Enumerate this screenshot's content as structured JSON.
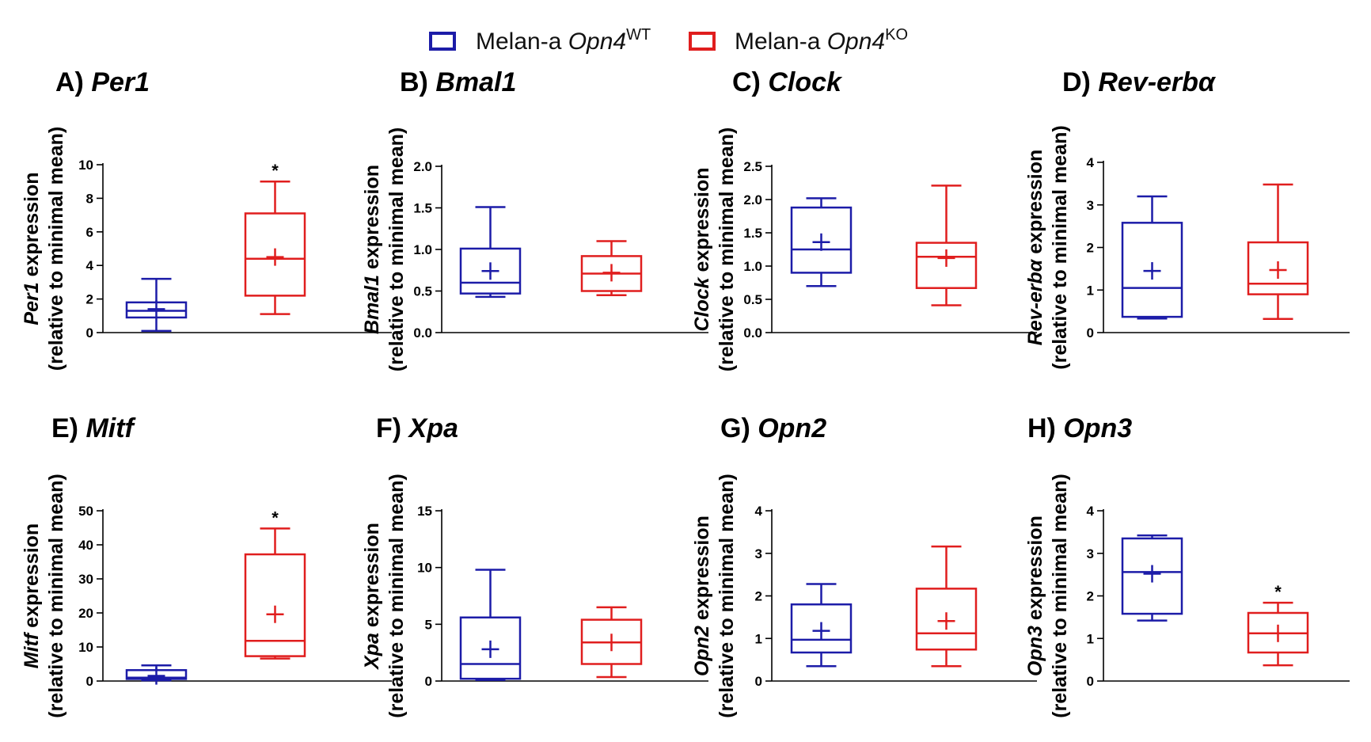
{
  "legend": {
    "items": [
      {
        "prefix": "Melan-a ",
        "gene": "Opn4",
        "sup": "WT",
        "color": "#1c1ca8"
      },
      {
        "prefix": "Melan-a ",
        "gene": "Opn4",
        "sup": "KO",
        "color": "#e01e1e"
      }
    ]
  },
  "chart_data": [
    {
      "type": "box",
      "panel": "A)",
      "gene": "Per1",
      "title": "A) Per1",
      "ylabel_gene": "Per1",
      "ylabel_suffix": " expression",
      "ylabel_line2": "(relative to minimal mean)",
      "ylim": [
        0,
        10
      ],
      "ticks": [
        0,
        2,
        4,
        6,
        8,
        10
      ],
      "tick_labels": [
        "0",
        "2",
        "4",
        "6",
        "8",
        "10"
      ],
      "groups": [
        {
          "name": "Melan-a Opn4 WT",
          "min": 0.1,
          "q1": 0.9,
          "median": 1.3,
          "q3": 1.8,
          "max": 3.2,
          "mean": 1.4,
          "sig": ""
        },
        {
          "name": "Melan-a Opn4 KO",
          "min": 1.1,
          "q1": 2.2,
          "median": 4.4,
          "q3": 7.1,
          "max": 9.0,
          "mean": 4.5,
          "sig": "*"
        }
      ]
    },
    {
      "type": "box",
      "panel": "B)",
      "gene": "Bmal1",
      "title": "B) Bmal1",
      "ylabel_gene": "Bmal1",
      "ylabel_suffix": " expression",
      "ylabel_line2": "(relative to minimal mean)",
      "ylim": [
        0,
        2
      ],
      "ticks": [
        0,
        0.5,
        1,
        1.5,
        2
      ],
      "tick_labels": [
        "0.0",
        "0.5",
        "1.0",
        "1.5",
        "2.0"
      ],
      "groups": [
        {
          "name": "Melan-a Opn4 WT",
          "min": 0.43,
          "q1": 0.47,
          "median": 0.6,
          "q3": 1.01,
          "max": 1.51,
          "mean": 0.74,
          "sig": ""
        },
        {
          "name": "Melan-a Opn4 KO",
          "min": 0.45,
          "q1": 0.5,
          "median": 0.71,
          "q3": 0.92,
          "max": 1.1,
          "mean": 0.72,
          "sig": ""
        }
      ]
    },
    {
      "type": "box",
      "panel": "C)",
      "gene": "Clock",
      "title": "C) Clock",
      "ylabel_gene": "Clock",
      "ylabel_suffix": " expression",
      "ylabel_line2": "(relative to minimal mean)",
      "ylim": [
        0,
        2.5
      ],
      "ticks": [
        0,
        0.5,
        1,
        1.5,
        2,
        2.5
      ],
      "tick_labels": [
        "0.0",
        "0.5",
        "1.0",
        "1.5",
        "2.0",
        "2.5"
      ],
      "groups": [
        {
          "name": "Melan-a Opn4 WT",
          "min": 0.7,
          "q1": 0.9,
          "median": 1.25,
          "q3": 1.88,
          "max": 2.02,
          "mean": 1.36,
          "sig": ""
        },
        {
          "name": "Melan-a Opn4 KO",
          "min": 0.41,
          "q1": 0.67,
          "median": 1.14,
          "q3": 1.35,
          "max": 2.21,
          "mean": 1.12,
          "sig": ""
        }
      ]
    },
    {
      "type": "box",
      "panel": "D)",
      "gene": "Rev-erbα",
      "title": "D) Rev-erbα",
      "ylabel_gene": "Rev-erbα",
      "ylabel_suffix": " expression",
      "ylabel_line2": "(relative to minimal mean)",
      "ylim": [
        0,
        4
      ],
      "ticks": [
        0,
        1,
        2,
        3,
        4
      ],
      "tick_labels": [
        "0",
        "1",
        "2",
        "3",
        "4"
      ],
      "groups": [
        {
          "name": "Melan-a Opn4 WT",
          "min": 0.33,
          "q1": 0.37,
          "median": 1.05,
          "q3": 2.58,
          "max": 3.2,
          "mean": 1.45,
          "sig": ""
        },
        {
          "name": "Melan-a Opn4 KO",
          "min": 0.32,
          "q1": 0.9,
          "median": 1.15,
          "q3": 2.12,
          "max": 3.48,
          "mean": 1.47,
          "sig": ""
        }
      ]
    },
    {
      "type": "box",
      "panel": "E)",
      "gene": "Mitf",
      "title": "E) Mitf",
      "ylabel_gene": "Mitf",
      "ylabel_suffix": " expression",
      "ylabel_line2": "(relative to minimal mean)",
      "ylim": [
        0,
        50
      ],
      "ticks": [
        0,
        10,
        20,
        30,
        40,
        50
      ],
      "tick_labels": [
        "0",
        "10",
        "20",
        "30",
        "40",
        "50"
      ],
      "groups": [
        {
          "name": "Melan-a Opn4 WT",
          "min": 0.2,
          "q1": 0.6,
          "median": 1.0,
          "q3": 3.2,
          "max": 4.6,
          "mean": 1.5,
          "sig": ""
        },
        {
          "name": "Melan-a Opn4 KO",
          "min": 6.6,
          "q1": 7.3,
          "median": 11.8,
          "q3": 37.2,
          "max": 44.8,
          "mean": 19.6,
          "sig": "*"
        }
      ]
    },
    {
      "type": "box",
      "panel": "F)",
      "gene": "Xpa",
      "title": "F) Xpa",
      "ylabel_gene": "Xpa",
      "ylabel_suffix": " expression",
      "ylabel_line2": "(relative to minimal mean)",
      "ylim": [
        0,
        15
      ],
      "ticks": [
        0,
        5,
        10,
        15
      ],
      "tick_labels": [
        "0",
        "5",
        "10",
        "15"
      ],
      "groups": [
        {
          "name": "Melan-a Opn4 WT",
          "min": 0.1,
          "q1": 0.2,
          "median": 1.5,
          "q3": 5.6,
          "max": 9.8,
          "mean": 2.8,
          "sig": ""
        },
        {
          "name": "Melan-a Opn4 KO",
          "min": 0.35,
          "q1": 1.5,
          "median": 3.4,
          "q3": 5.4,
          "max": 6.5,
          "mean": 3.4,
          "sig": ""
        }
      ]
    },
    {
      "type": "box",
      "panel": "G)",
      "gene": "Opn2",
      "title": "G) Opn2",
      "ylabel_gene": "Opn2",
      "ylabel_suffix": " expression",
      "ylabel_line2": "(relative to minimal mean)",
      "ylim": [
        0,
        4
      ],
      "ticks": [
        0,
        1,
        2,
        3,
        4
      ],
      "tick_labels": [
        "0",
        "1",
        "2",
        "3",
        "4"
      ],
      "groups": [
        {
          "name": "Melan-a Opn4 WT",
          "min": 0.35,
          "q1": 0.67,
          "median": 0.97,
          "q3": 1.8,
          "max": 2.28,
          "mean": 1.18,
          "sig": ""
        },
        {
          "name": "Melan-a Opn4 KO",
          "min": 0.35,
          "q1": 0.74,
          "median": 1.12,
          "q3": 2.17,
          "max": 3.16,
          "mean": 1.41,
          "sig": ""
        }
      ]
    },
    {
      "type": "box",
      "panel": "H)",
      "gene": "Opn3",
      "title": "H) Opn3",
      "ylabel_gene": "Opn3",
      "ylabel_suffix": " expression",
      "ylabel_line2": "(relative to minimal mean)",
      "ylim": [
        0,
        4
      ],
      "ticks": [
        0,
        1,
        2,
        3,
        4
      ],
      "tick_labels": [
        "0",
        "1",
        "2",
        "3",
        "4"
      ],
      "groups": [
        {
          "name": "Melan-a Opn4 WT",
          "min": 1.42,
          "q1": 1.58,
          "median": 2.56,
          "q3": 3.35,
          "max": 3.42,
          "mean": 2.52,
          "sig": ""
        },
        {
          "name": "Melan-a Opn4 KO",
          "min": 0.37,
          "q1": 0.67,
          "median": 1.12,
          "q3": 1.6,
          "max": 1.84,
          "mean": 1.12,
          "sig": "*"
        }
      ]
    }
  ]
}
